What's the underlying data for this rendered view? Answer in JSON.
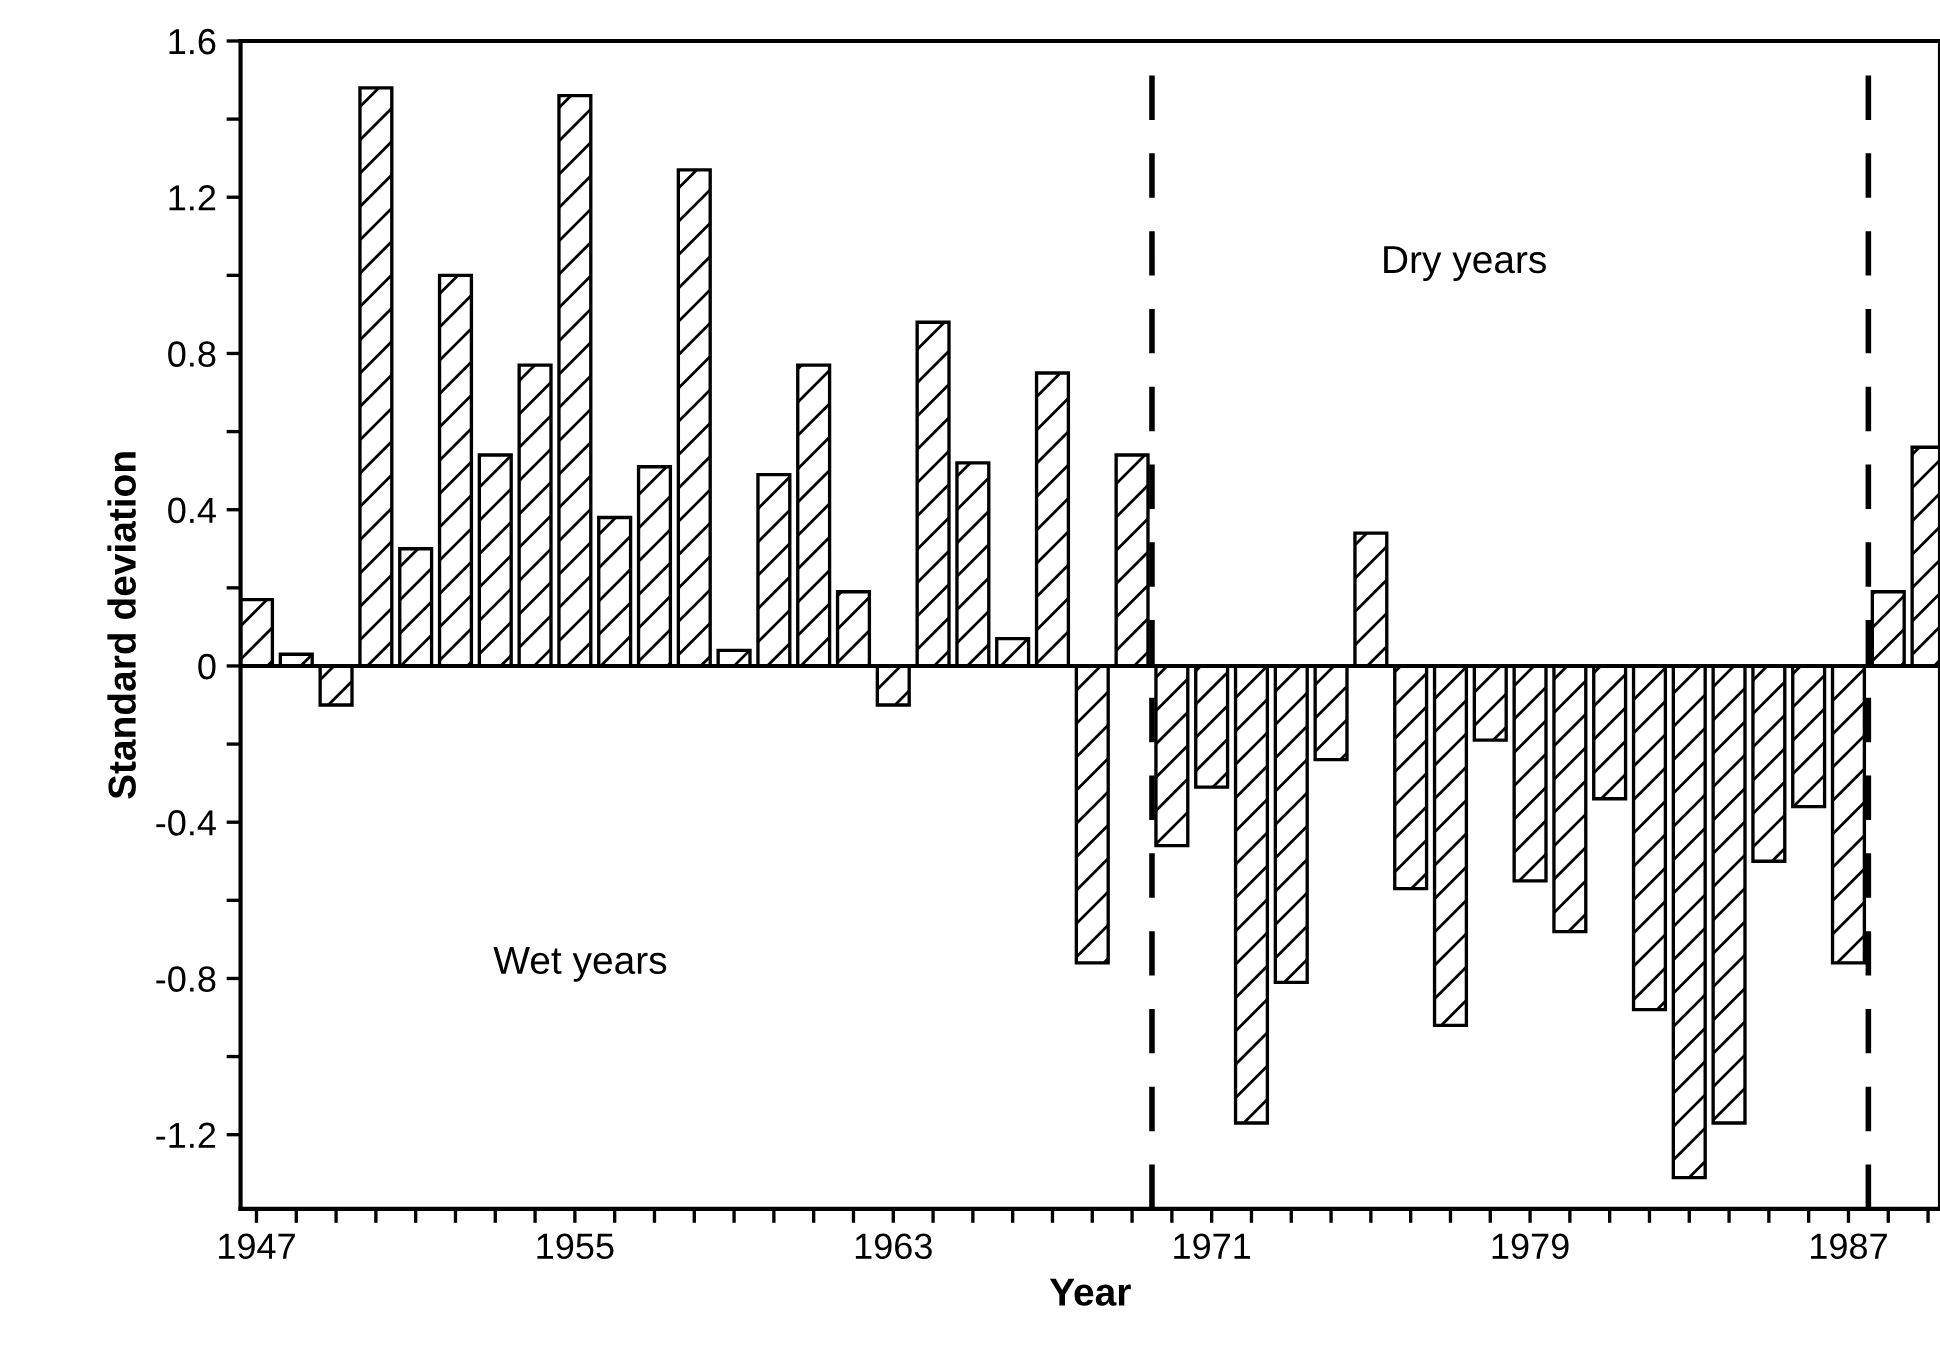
{
  "chart_data": {
    "type": "bar",
    "xlabel": "Year",
    "ylabel": "Standard deviation",
    "x": [
      1947,
      1948,
      1949,
      1950,
      1951,
      1952,
      1953,
      1954,
      1955,
      1956,
      1957,
      1958,
      1959,
      1960,
      1961,
      1962,
      1963,
      1964,
      1965,
      1966,
      1967,
      1968,
      1969,
      1970,
      1971,
      1972,
      1973,
      1974,
      1975,
      1976,
      1977,
      1978,
      1979,
      1980,
      1981,
      1982,
      1983,
      1984,
      1985,
      1986,
      1987,
      1988,
      1989
    ],
    "values": [
      0.17,
      0.03,
      -0.1,
      1.48,
      0.3,
      1.0,
      0.54,
      0.77,
      1.46,
      0.38,
      0.51,
      1.27,
      0.04,
      0.49,
      0.77,
      0.19,
      -0.1,
      0.88,
      0.52,
      0.07,
      0.75,
      -0.76,
      0.54,
      -0.46,
      -0.31,
      -1.17,
      -0.81,
      -0.24,
      0.34,
      -0.57,
      -0.92,
      -0.19,
      -0.55,
      -0.68,
      -0.34,
      -0.88,
      -1.31,
      -1.17,
      -0.5,
      -0.36,
      -0.76,
      0.19,
      0.56
    ],
    "color": "#000000",
    "xlim": [
      1946.6,
      1989.3
    ],
    "ylim": [
      -1.39,
      1.6
    ],
    "xticks": [
      1947,
      {
        "value": 1948,
        "label": null
      },
      {
        "value": 1949,
        "label": null
      },
      {
        "value": 1950,
        "label": null
      },
      {
        "value": 1951,
        "label": null
      },
      {
        "value": 1952,
        "label": null
      },
      {
        "value": 1953,
        "label": null
      },
      {
        "value": 1954,
        "label": null
      },
      1955,
      {
        "value": 1956,
        "label": null
      },
      {
        "value": 1957,
        "label": null
      },
      {
        "value": 1958,
        "label": null
      },
      {
        "value": 1959,
        "label": null
      },
      {
        "value": 1960,
        "label": null
      },
      {
        "value": 1961,
        "label": null
      },
      {
        "value": 1962,
        "label": null
      },
      1963,
      {
        "value": 1964,
        "label": null
      },
      {
        "value": 1965,
        "label": null
      },
      {
        "value": 1966,
        "label": null
      },
      {
        "value": 1967,
        "label": null
      },
      {
        "value": 1968,
        "label": null
      },
      {
        "value": 1969,
        "label": null
      },
      {
        "value": 1970,
        "label": null
      },
      1971,
      {
        "value": 1972,
        "label": null
      },
      {
        "value": 1973,
        "label": null
      },
      {
        "value": 1974,
        "label": null
      },
      {
        "value": 1975,
        "label": null
      },
      {
        "value": 1976,
        "label": null
      },
      {
        "value": 1977,
        "label": null
      },
      {
        "value": 1978,
        "label": null
      },
      1979,
      {
        "value": 1980,
        "label": null
      },
      {
        "value": 1981,
        "label": null
      },
      {
        "value": 1982,
        "label": null
      },
      {
        "value": 1983,
        "label": null
      },
      {
        "value": 1984,
        "label": null
      },
      {
        "value": 1985,
        "label": null
      },
      {
        "value": 1986,
        "label": null
      },
      1987,
      {
        "value": 1988,
        "label": null
      },
      {
        "value": 1989,
        "label": null
      }
    ],
    "yticks": [
      -1.2,
      {
        "value": -1.0,
        "label": null
      },
      -0.8,
      {
        "value": -0.6,
        "label": null
      },
      -0.4,
      {
        "value": -0.2,
        "label": null
      },
      0,
      {
        "value": 0.2,
        "label": null
      },
      0.4,
      {
        "value": 0.6,
        "label": null
      },
      0.8,
      {
        "value": 1.0,
        "label": null
      },
      1.2,
      {
        "value": 1.4,
        "label": null
      },
      1.6
    ],
    "ref_lines": [
      {
        "axis": "x",
        "value": 1969.5,
        "line_style": "dashed",
        "color": "#000000"
      },
      {
        "axis": "x",
        "value": 1987.5,
        "line_style": "dashed",
        "color": "#000000"
      },
      {
        "axis": "y",
        "value": 0,
        "line_style": "solid",
        "color": "#000000"
      }
    ],
    "annotations": [
      "Wet years",
      "Dry years"
    ],
    "grid": false,
    "legend": false
  }
}
